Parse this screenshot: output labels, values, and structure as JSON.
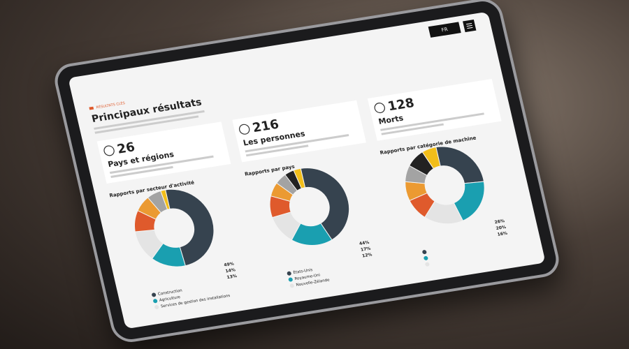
{
  "header": {
    "button": "FR",
    "tag": "RÉSULTATS CLÉS",
    "title": "Principaux résultats"
  },
  "kpis": [
    {
      "value": "26",
      "label": "Pays et régions"
    },
    {
      "value": "216",
      "label": "Les personnes"
    },
    {
      "value": "128",
      "label": "Morts"
    }
  ],
  "chart_data": [
    {
      "type": "pie",
      "title": "Rapports par secteur d'activité",
      "values": [
        49,
        14,
        13,
        9,
        7,
        6,
        2
      ],
      "value_labels": [
        "49%",
        "14%",
        "13%",
        null,
        null,
        null,
        null
      ],
      "colors": [
        "#36434f",
        "#1a9fb0",
        "#e4e4e4",
        "#df5a2c",
        "#eb9a32",
        "#a3a3a3",
        "#f2be1a"
      ],
      "legend": [
        "Construction",
        "Agriculture",
        "Services de gestion des installations"
      ]
    },
    {
      "type": "pie",
      "title": "Rapports par pays",
      "values": [
        44,
        17,
        12,
        9,
        6,
        5,
        4,
        3
      ],
      "value_labels": [
        "44%",
        "17%",
        "12%",
        null,
        null,
        null,
        null,
        null
      ],
      "colors": [
        "#36434f",
        "#1a9fb0",
        "#e4e4e4",
        "#df5a2c",
        "#eb9a32",
        "#a3a3a3",
        "#222222",
        "#f2be1a"
      ],
      "legend": [
        "États-Unis",
        "Royaume-Uni",
        "Nouvelle-Zélande"
      ]
    },
    {
      "type": "pie",
      "title": "Rapports par catégorie de machine",
      "values": [
        26,
        20,
        16,
        9,
        8,
        7,
        8,
        6
      ],
      "value_labels": [
        "26%",
        "20%",
        "16%",
        null,
        null,
        null,
        null,
        null
      ],
      "colors": [
        "#36434f",
        "#1a9fb0",
        "#e4e4e4",
        "#df5a2c",
        "#eb9a32",
        "#a3a3a3",
        "#222222",
        "#f2be1a"
      ],
      "legend": []
    }
  ]
}
